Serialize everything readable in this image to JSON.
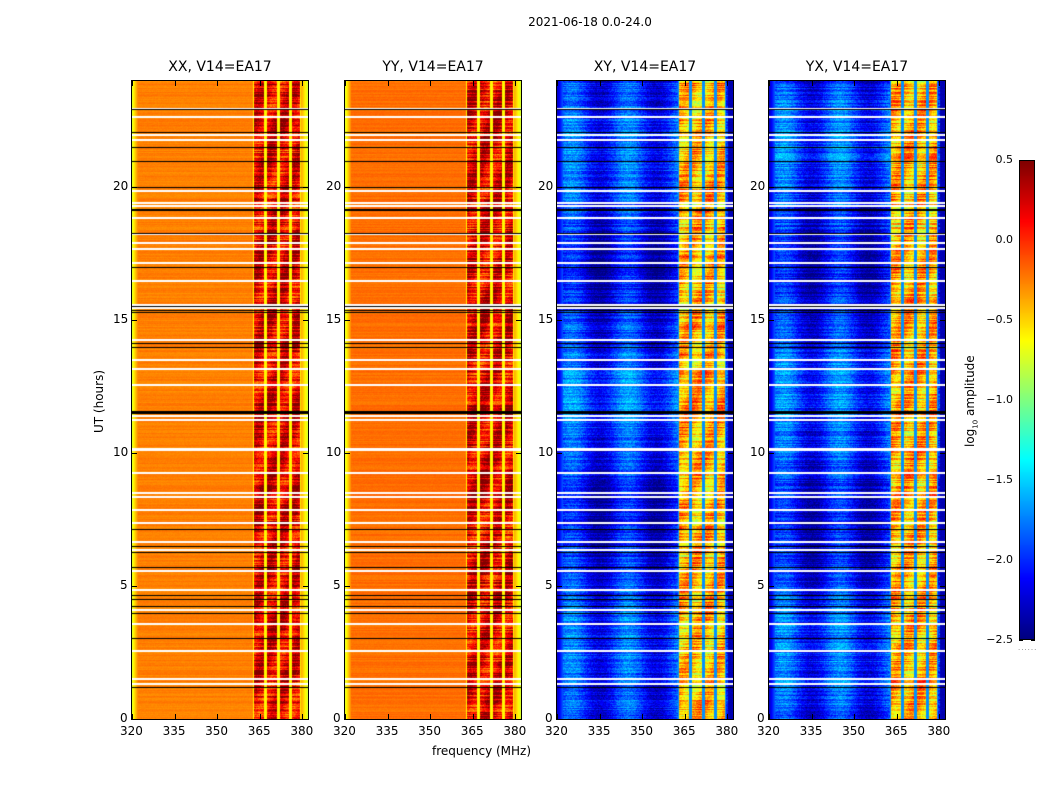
{
  "suptitle": "2021-06-18 0.0-24.0",
  "chart_data": {
    "type": "heatmap",
    "title": "2021-06-18 0.0-24.0",
    "xlabel": "frequency (MHz)",
    "ylabel": "UT (hours)",
    "xlim": [
      320,
      382
    ],
    "ylim": [
      0,
      24
    ],
    "xticks": [
      "320",
      "335",
      "350",
      "365",
      "380"
    ],
    "xtick_values": [
      320,
      335,
      350,
      365,
      380
    ],
    "yticks": [
      "0",
      "5",
      "10",
      "15",
      "20"
    ],
    "ytick_values": [
      0,
      5,
      10,
      15,
      20
    ],
    "colorbar": {
      "label": "log10 amplitude",
      "label_main": "log",
      "label_sub": "10",
      "label_rest": " amplitude",
      "range": [
        -2.5,
        0.5
      ],
      "ticks": [
        "0.5",
        "0.0",
        "−0.5",
        "−1.0",
        "−1.5",
        "−2.0",
        "−2.5"
      ],
      "tick_values": [
        0.5,
        0.0,
        -0.5,
        -1.0,
        -1.5,
        -2.0,
        -2.5
      ],
      "colormap": "jet"
    },
    "panels": [
      {
        "name": "XX",
        "title": "XX, V14=EA17",
        "base_level": -0.25,
        "band_level": 0.2,
        "edge_level": -0.7
      },
      {
        "name": "YY",
        "title": "YY, V14=EA17",
        "base_level": -0.2,
        "band_level": 0.2,
        "edge_level": -0.7
      },
      {
        "name": "XY",
        "title": "XY, V14=EA17",
        "base_level": -2.05,
        "band_level": -0.4,
        "edge_level": -2.3
      },
      {
        "name": "YX",
        "title": "YX, V14=EA17",
        "base_level": -2.05,
        "band_level": -0.4,
        "edge_level": -2.3
      }
    ],
    "rfi_band_MHz": [
      362.5,
      379.5
    ],
    "subband_edges_MHz": [
      367,
      371.5,
      375.5
    ],
    "flagged_gap_hours_white": [
      1.35,
      1.55,
      2.6,
      3.6,
      4.15,
      4.9,
      5.6,
      6.4,
      6.7,
      7.4,
      7.9,
      8.4,
      8.55,
      9.3,
      10.15,
      10.2,
      11.3,
      11.45,
      12.6,
      13.2,
      13.55,
      14.3,
      15.5,
      15.6,
      16.5,
      17.2,
      17.7,
      17.95,
      18.3,
      18.9,
      19.35,
      19.45,
      19.9,
      21.8,
      22.0,
      22.7,
      23.0
    ],
    "flagged_gap_hours_black": [
      1.2,
      3.05,
      4.0,
      4.25,
      4.5,
      4.65,
      5.7,
      6.3,
      6.5,
      7.15,
      11.5,
      11.55,
      11.6,
      14.0,
      14.15,
      15.3,
      15.4,
      15.55,
      17.0,
      18.3,
      19.15,
      19.2,
      20.0,
      21.0,
      21.5,
      22.1,
      22.95
    ]
  }
}
